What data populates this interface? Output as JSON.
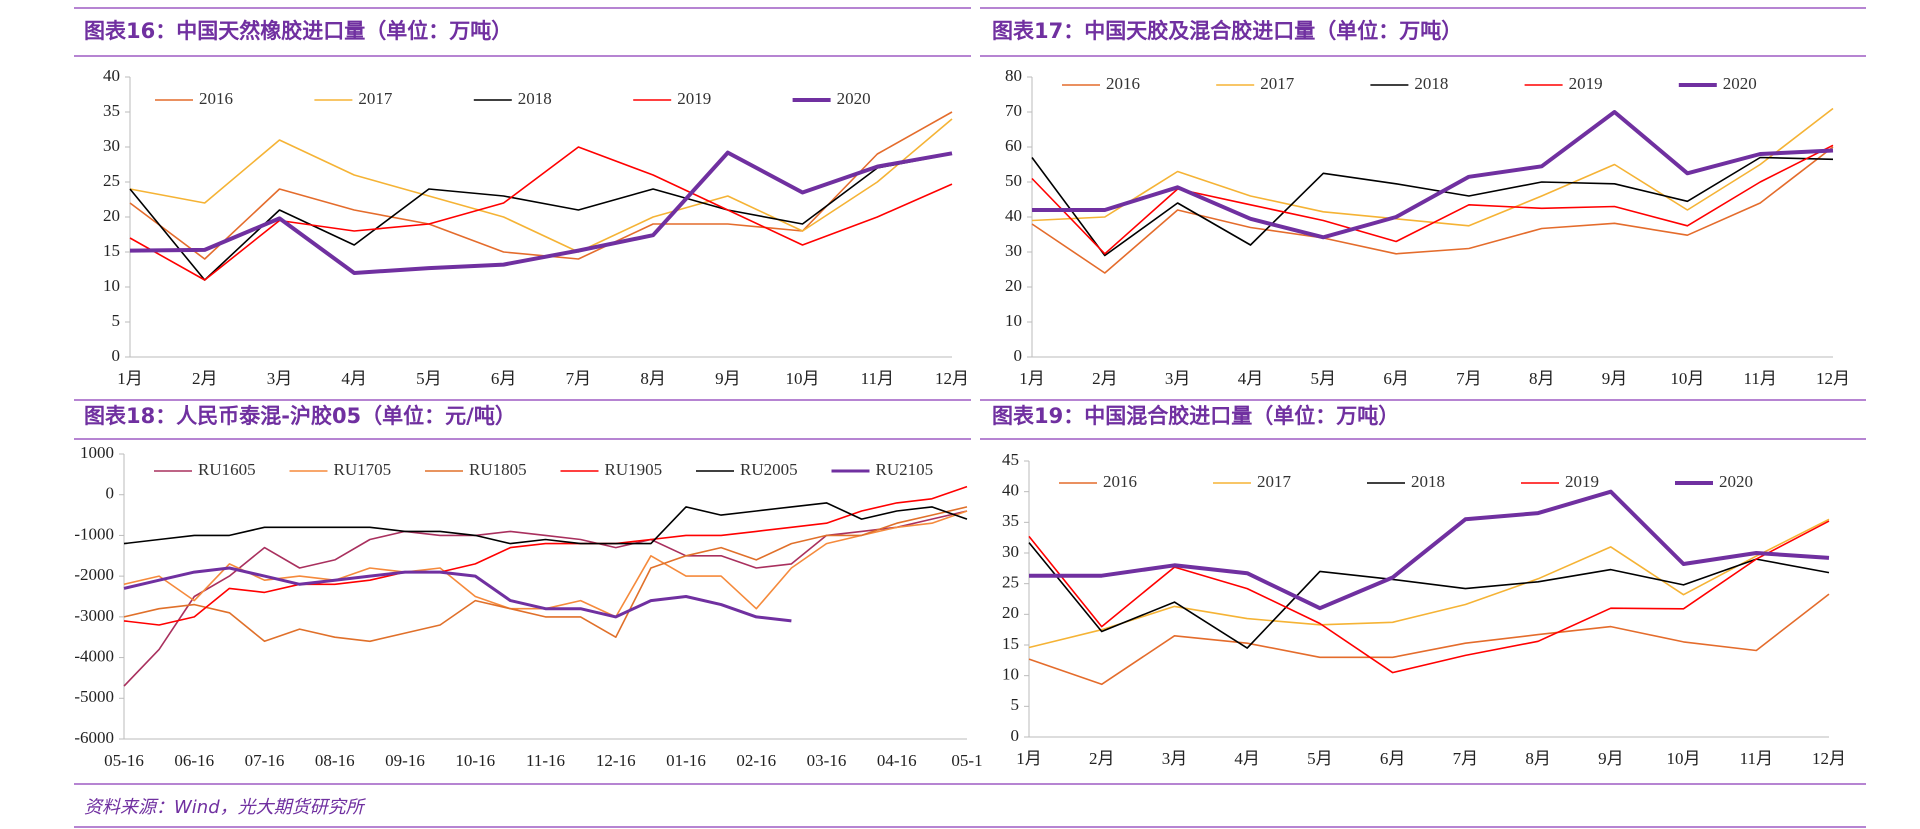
{
  "chart_data": [
    {
      "type": "line",
      "title": "图表16：中国天然橡胶进口量（单位：万吨）",
      "categories": [
        "1月",
        "2月",
        "3月",
        "4月",
        "5月",
        "6月",
        "7月",
        "8月",
        "9月",
        "10月",
        "11月",
        "12月"
      ],
      "ylim": [
        0,
        40
      ],
      "yticks": [
        0,
        5,
        10,
        15,
        20,
        25,
        30,
        35,
        40
      ],
      "series": [
        {
          "name": "2016",
          "color": "#e46c2c",
          "line_width": 1.6,
          "values": [
            22,
            14,
            24,
            21,
            19,
            15,
            14,
            19,
            19,
            18,
            29,
            35
          ]
        },
        {
          "name": "2017",
          "color": "#f5b335",
          "line_width": 1.6,
          "values": [
            24,
            22,
            31,
            26,
            23,
            20,
            15,
            20,
            23,
            18,
            25,
            34
          ]
        },
        {
          "name": "2018",
          "color": "#000000",
          "line_width": 1.6,
          "values": [
            24,
            11,
            21,
            16,
            24,
            23,
            21,
            24,
            21,
            19,
            27,
            29
          ]
        },
        {
          "name": "2019",
          "color": "#ff0000",
          "line_width": 1.6,
          "values": [
            17,
            11,
            19.5,
            18,
            19,
            22,
            30,
            26,
            21,
            16,
            20,
            24.7
          ]
        },
        {
          "name": "2020",
          "color": "#7030a0",
          "line_width": 4,
          "values": [
            15.2,
            15.3,
            19.8,
            12,
            12.7,
            13.2,
            15.2,
            17.4,
            29.2,
            23.5,
            27.2,
            29.1
          ]
        }
      ]
    },
    {
      "type": "line",
      "title": "图表17：中国天胶及混合胶进口量（单位：万吨）",
      "categories": [
        "1月",
        "2月",
        "3月",
        "4月",
        "5月",
        "6月",
        "7月",
        "8月",
        "9月",
        "10月",
        "11月",
        "12月"
      ],
      "ylim": [
        0,
        80
      ],
      "yticks": [
        0,
        10,
        20,
        30,
        40,
        50,
        60,
        70,
        80
      ],
      "series": [
        {
          "name": "2016",
          "color": "#e46c2c",
          "line_width": 1.6,
          "values": [
            38,
            24,
            42,
            37,
            34,
            29.5,
            31,
            36.7,
            38.2,
            34.8,
            44,
            60
          ]
        },
        {
          "name": "2017",
          "color": "#f5b335",
          "line_width": 1.6,
          "values": [
            39,
            40,
            53,
            46,
            41.5,
            39.5,
            37.5,
            46,
            55,
            42,
            55,
            71
          ]
        },
        {
          "name": "2018",
          "color": "#000000",
          "line_width": 1.6,
          "values": [
            57,
            29,
            44,
            32,
            52.5,
            49.5,
            46,
            50,
            49.5,
            44.5,
            57,
            56.5
          ]
        },
        {
          "name": "2019",
          "color": "#ff0000",
          "line_width": 1.6,
          "values": [
            51,
            29.5,
            48,
            43.5,
            39,
            33,
            43.5,
            42.5,
            43,
            37.5,
            50,
            60.5
          ]
        },
        {
          "name": "2020",
          "color": "#7030a0",
          "line_width": 4,
          "values": [
            42,
            42,
            48.5,
            39.5,
            34.2,
            40,
            51.5,
            54.5,
            70,
            52.5,
            58,
            59
          ]
        }
      ]
    },
    {
      "type": "line",
      "title": "图表18：人民币泰混-沪胶05（单位：元/吨）",
      "categories": [
        "05-16",
        null,
        "06-16",
        null,
        "07-16",
        null,
        "08-16",
        null,
        "09-16",
        null,
        "10-16",
        null,
        "11-16",
        null,
        "12-16",
        null,
        "01-16",
        null,
        "02-16",
        null,
        "03-16",
        null,
        "04-16",
        null,
        "05-1"
      ],
      "ylim": [
        -6000,
        1000
      ],
      "yticks": [
        -6000,
        -5000,
        -4000,
        -3000,
        -2000,
        -1000,
        0,
        1000
      ],
      "series": [
        {
          "name": "RU1605",
          "color": "#a9305e",
          "line_width": 1.6,
          "values": [
            -4700,
            -3800,
            -2500,
            -2000,
            -1300,
            -1800,
            -1600,
            -1100,
            -900,
            -1000,
            -1000,
            -900,
            -1000,
            -1100,
            -1300,
            -1100,
            -1500,
            -1500,
            -1800,
            -1700,
            -1000,
            -900,
            -800,
            -600,
            -400
          ]
        },
        {
          "name": "RU1705",
          "color": "#f58a3c",
          "line_width": 1.6,
          "values": [
            -2200,
            -2000,
            -2600,
            -1700,
            -2100,
            -2000,
            -2100,
            -1800,
            -1900,
            -1800,
            -2500,
            -2800,
            -2800,
            -2600,
            -3000,
            -1500,
            -2000,
            -2000,
            -2800,
            -1800,
            -1200,
            -1000,
            -800,
            -700,
            -400
          ]
        },
        {
          "name": "RU1805",
          "color": "#e0702a",
          "line_width": 1.6,
          "values": [
            -3000,
            -2800,
            -2700,
            -2900,
            -3600,
            -3300,
            -3500,
            -3600,
            -3400,
            -3200,
            -2600,
            -2800,
            -3000,
            -3000,
            -3500,
            -1800,
            -1500,
            -1300,
            -1600,
            -1200,
            -1000,
            -1000,
            -700,
            -500,
            -300
          ]
        },
        {
          "name": "RU1905",
          "color": "#ff0000",
          "line_width": 1.6,
          "values": [
            -3100,
            -3200,
            -3000,
            -2300,
            -2400,
            -2200,
            -2200,
            -2100,
            -1900,
            -1900,
            -1700,
            -1300,
            -1200,
            -1200,
            -1200,
            -1100,
            -1000,
            -1000,
            -900,
            -800,
            -700,
            -400,
            -200,
            -100,
            200
          ]
        },
        {
          "name": "RU2005",
          "color": "#000000",
          "line_width": 1.6,
          "values": [
            -1200,
            -1100,
            -1000,
            -1000,
            -800,
            -800,
            -800,
            -800,
            -900,
            -900,
            -1000,
            -1200,
            -1100,
            -1200,
            -1200,
            -1200,
            -300,
            -500,
            -400,
            -300,
            -200,
            -600,
            -400,
            -300,
            -600
          ]
        },
        {
          "name": "RU2105",
          "color": "#7030a0",
          "line_width": 3,
          "values": [
            -2300,
            -2100,
            -1900,
            -1800,
            -2000,
            -2200,
            -2100,
            -2000,
            -1900,
            -1900,
            -2000,
            -2600,
            -2800,
            -2800,
            -3000,
            -2600,
            -2500,
            -2700,
            -3000,
            -3100,
            null,
            null,
            null,
            null,
            null
          ]
        }
      ]
    },
    {
      "type": "line",
      "title": "图表19：中国混合胶进口量（单位：万吨）",
      "categories": [
        "1月",
        "2月",
        "3月",
        "4月",
        "5月",
        "6月",
        "7月",
        "8月",
        "9月",
        "10月",
        "11月",
        "12月"
      ],
      "ylim": [
        0,
        45
      ],
      "yticks": [
        0,
        5,
        10,
        15,
        20,
        25,
        30,
        35,
        40,
        45
      ],
      "series": [
        {
          "name": "2016",
          "color": "#e46c2c",
          "line_width": 1.6,
          "values": [
            12.7,
            8.6,
            16.5,
            15.3,
            13,
            13,
            15.3,
            16.7,
            18,
            15.5,
            14.1,
            23.3
          ]
        },
        {
          "name": "2017",
          "color": "#f5b335",
          "line_width": 1.6,
          "values": [
            14.6,
            17.5,
            21.3,
            19.3,
            18.3,
            18.7,
            21.6,
            25.8,
            31,
            23.2,
            29.5,
            35.5
          ]
        },
        {
          "name": "2018",
          "color": "#000000",
          "line_width": 1.6,
          "values": [
            31.7,
            17.2,
            22,
            14.5,
            27,
            25.7,
            24.2,
            25.3,
            27.3,
            24.8,
            29,
            26.8
          ]
        },
        {
          "name": "2019",
          "color": "#ff0000",
          "line_width": 1.6,
          "values": [
            32.7,
            18,
            27.7,
            24.2,
            18.5,
            10.5,
            13.3,
            15.6,
            21,
            20.9,
            29,
            35.2
          ]
        },
        {
          "name": "2020",
          "color": "#7030a0",
          "line_width": 4,
          "values": [
            26.3,
            26.3,
            28,
            26.7,
            21,
            26,
            35.5,
            36.5,
            40,
            28.2,
            30,
            29.2
          ]
        }
      ]
    }
  ],
  "footer": {
    "source": "资料来源：Wind，光大期货研究所"
  }
}
